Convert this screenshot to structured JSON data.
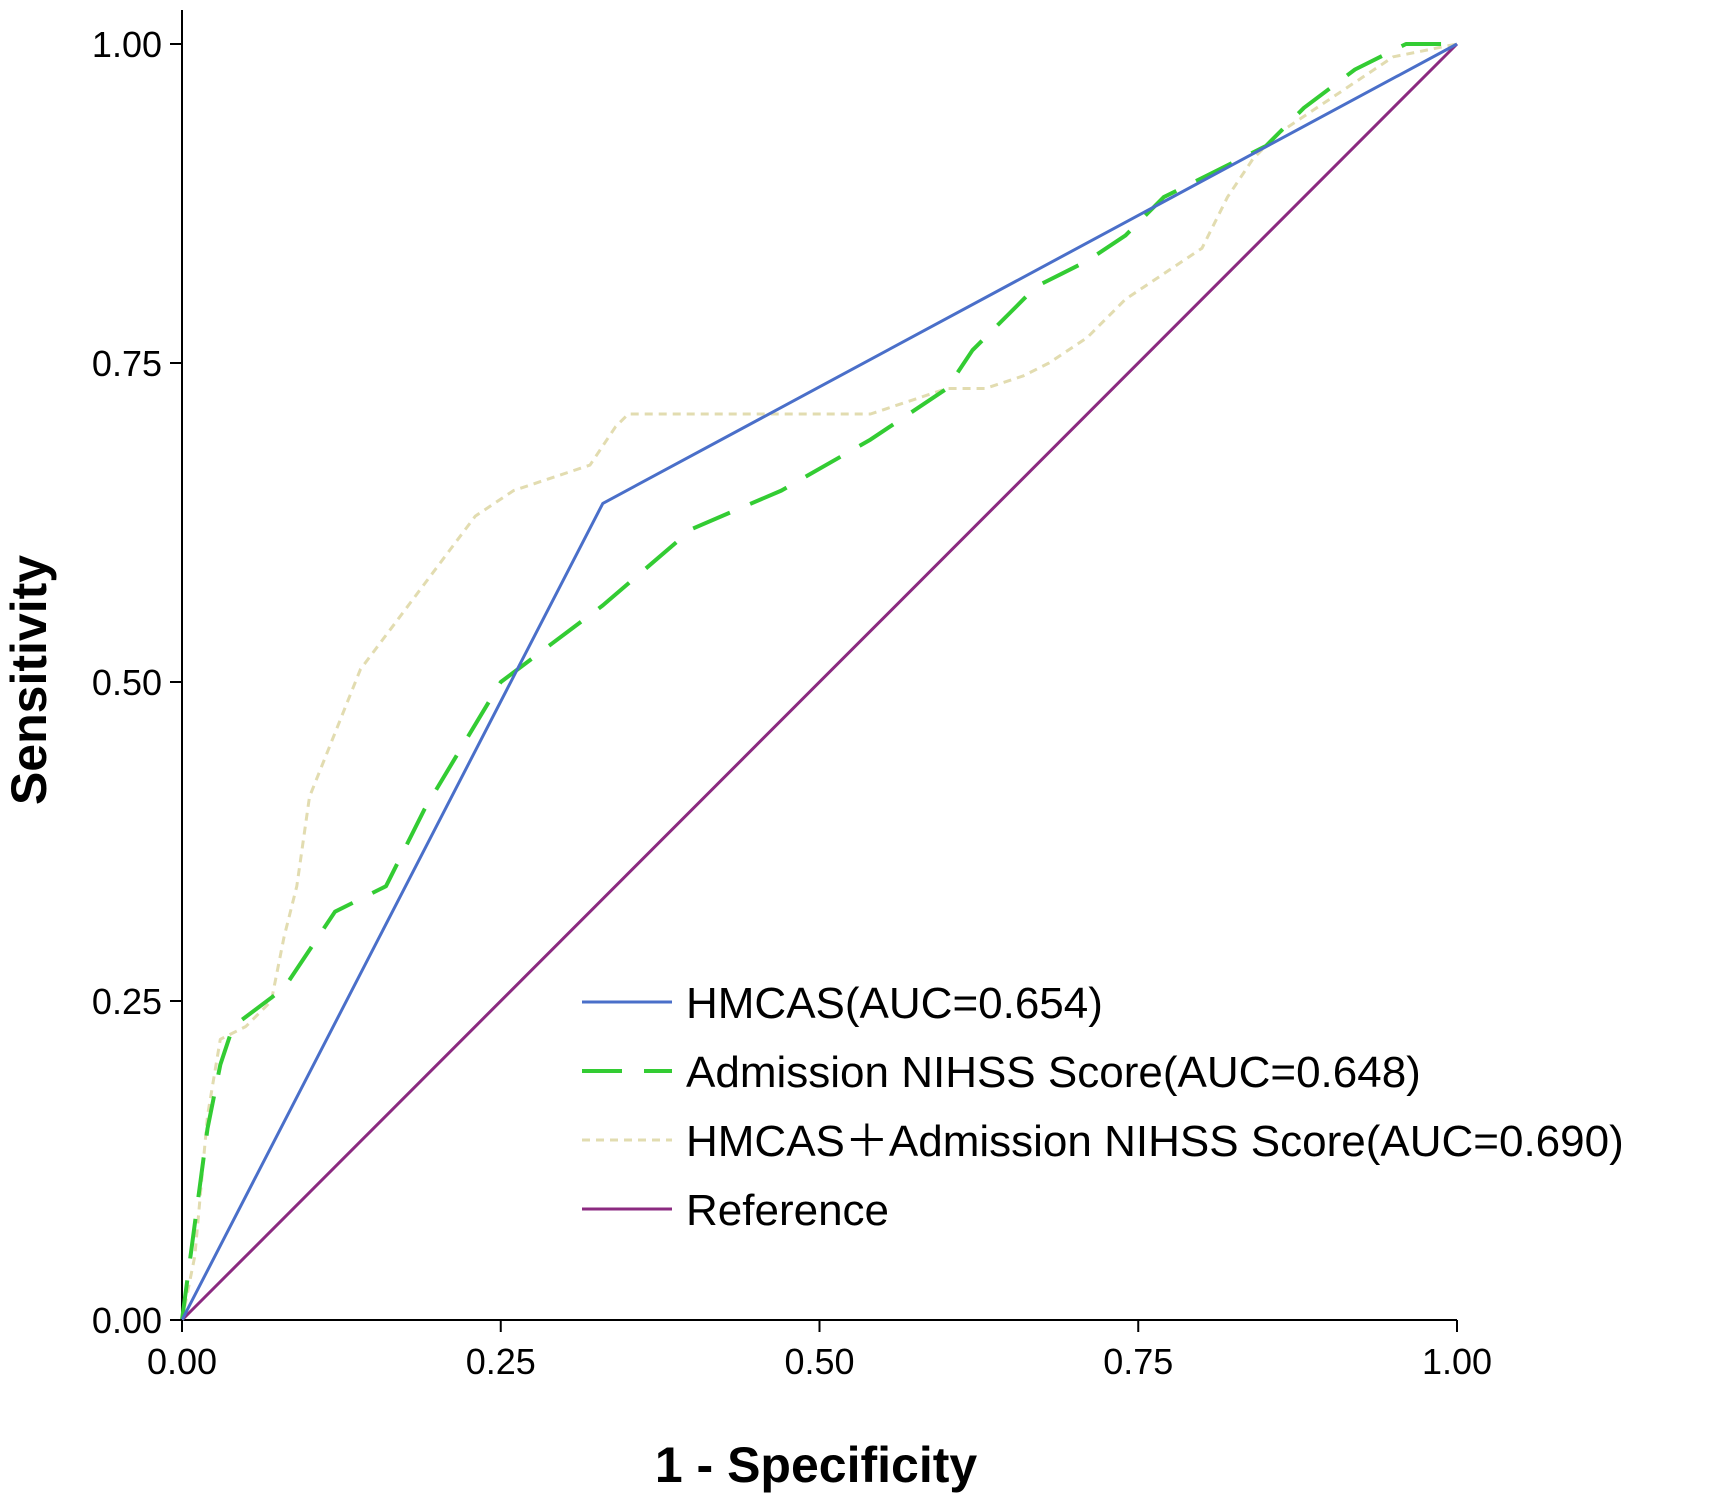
{
  "chart_data": {
    "type": "line",
    "title": "",
    "xlabel": "1 - Specificity",
    "ylabel": "Sensitivity",
    "xlim": [
      0,
      1
    ],
    "ylim": [
      0,
      1
    ],
    "x_ticks": [
      "0.00",
      "0.25",
      "0.50",
      "0.75",
      "1.00"
    ],
    "y_ticks": [
      "0.00",
      "0.25",
      "0.50",
      "0.75",
      "1.00"
    ],
    "grid": false,
    "legend_position": "bottom-right inside plot",
    "series": [
      {
        "name": "HMCAS(AUC=0.654)",
        "color": "#4a6fc9",
        "style": "solid",
        "x": [
          0,
          0.33,
          1.0
        ],
        "y": [
          0,
          0.64,
          1.0
        ]
      },
      {
        "name": "Admission NIHSS Score(AUC=0.648)",
        "color": "#33cc33",
        "style": "dashed",
        "x": [
          0,
          0.02,
          0.03,
          0.04,
          0.08,
          0.12,
          0.16,
          0.19,
          0.22,
          0.25,
          0.29,
          0.33,
          0.4,
          0.47,
          0.54,
          0.6,
          0.62,
          0.65,
          0.67,
          0.69,
          0.71,
          0.74,
          0.77,
          0.79,
          0.81,
          0.85,
          0.88,
          0.92,
          0.96,
          1.0
        ],
        "y": [
          0,
          0.15,
          0.2,
          0.23,
          0.26,
          0.32,
          0.34,
          0.4,
          0.45,
          0.5,
          0.53,
          0.56,
          0.62,
          0.65,
          0.69,
          0.73,
          0.76,
          0.79,
          0.81,
          0.82,
          0.83,
          0.85,
          0.88,
          0.89,
          0.9,
          0.92,
          0.95,
          0.98,
          1.0,
          1.0
        ]
      },
      {
        "name": "HMCAS＋Admission NIHSS Score(AUC=0.690)",
        "color": "#e2dcb0",
        "style": "dotted",
        "x": [
          0,
          0.01,
          0.02,
          0.03,
          0.05,
          0.07,
          0.08,
          0.09,
          0.1,
          0.12,
          0.14,
          0.17,
          0.2,
          0.23,
          0.26,
          0.29,
          0.32,
          0.34,
          0.35,
          0.4,
          0.45,
          0.54,
          0.57,
          0.6,
          0.63,
          0.66,
          0.68,
          0.71,
          0.74,
          0.77,
          0.8,
          0.82,
          0.84,
          0.86,
          0.89,
          0.92,
          0.95,
          1.0
        ],
        "y": [
          0,
          0.05,
          0.16,
          0.22,
          0.23,
          0.25,
          0.3,
          0.34,
          0.41,
          0.46,
          0.51,
          0.55,
          0.59,
          0.63,
          0.65,
          0.66,
          0.67,
          0.7,
          0.71,
          0.71,
          0.71,
          0.71,
          0.72,
          0.73,
          0.73,
          0.74,
          0.75,
          0.77,
          0.8,
          0.82,
          0.84,
          0.88,
          0.91,
          0.93,
          0.95,
          0.97,
          0.99,
          1.0
        ]
      },
      {
        "name": "Reference",
        "color": "#8b2a80",
        "style": "solid",
        "x": [
          0,
          1.0
        ],
        "y": [
          0,
          1.0
        ]
      }
    ]
  }
}
